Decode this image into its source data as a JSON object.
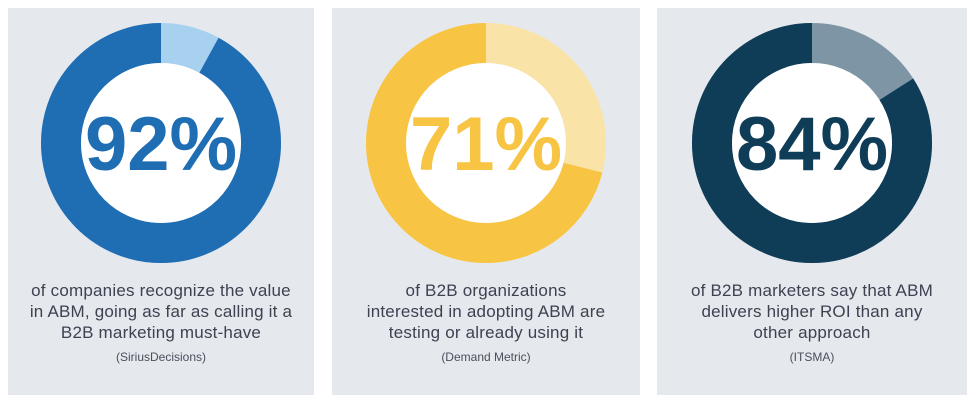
{
  "chart_data": [
    {
      "type": "pie",
      "subtype": "donut",
      "value": 92,
      "label": "92%",
      "description": "of companies recognize the value\nin ABM, going as far as calling it a\nB2B marketing must-have",
      "source": "(SiriusDecisions)",
      "colors": {
        "main": "#1f6db3",
        "rest": "#a8d1ef",
        "text": "#1f6db3"
      }
    },
    {
      "type": "pie",
      "subtype": "donut",
      "value": 71,
      "label": "71%",
      "description": "of B2B organizations\ninterested in adopting ABM are\ntesting or already using it",
      "source": "(Demand Metric)",
      "colors": {
        "main": "#f7c444",
        "rest": "#fae3a6",
        "text": "#f7c444"
      }
    },
    {
      "type": "pie",
      "subtype": "donut",
      "value": 84,
      "label": "84%",
      "description": "of B2B marketers say that ABM\ndelivers higher ROI than any\nother approach",
      "source": "(ITSMA)",
      "colors": {
        "main": "#0f3d58",
        "rest": "#7e95a5",
        "text": "#0f3d58"
      }
    }
  ],
  "style": {
    "card_background": "#e5e8ed",
    "caption_color": "#3d4250"
  }
}
